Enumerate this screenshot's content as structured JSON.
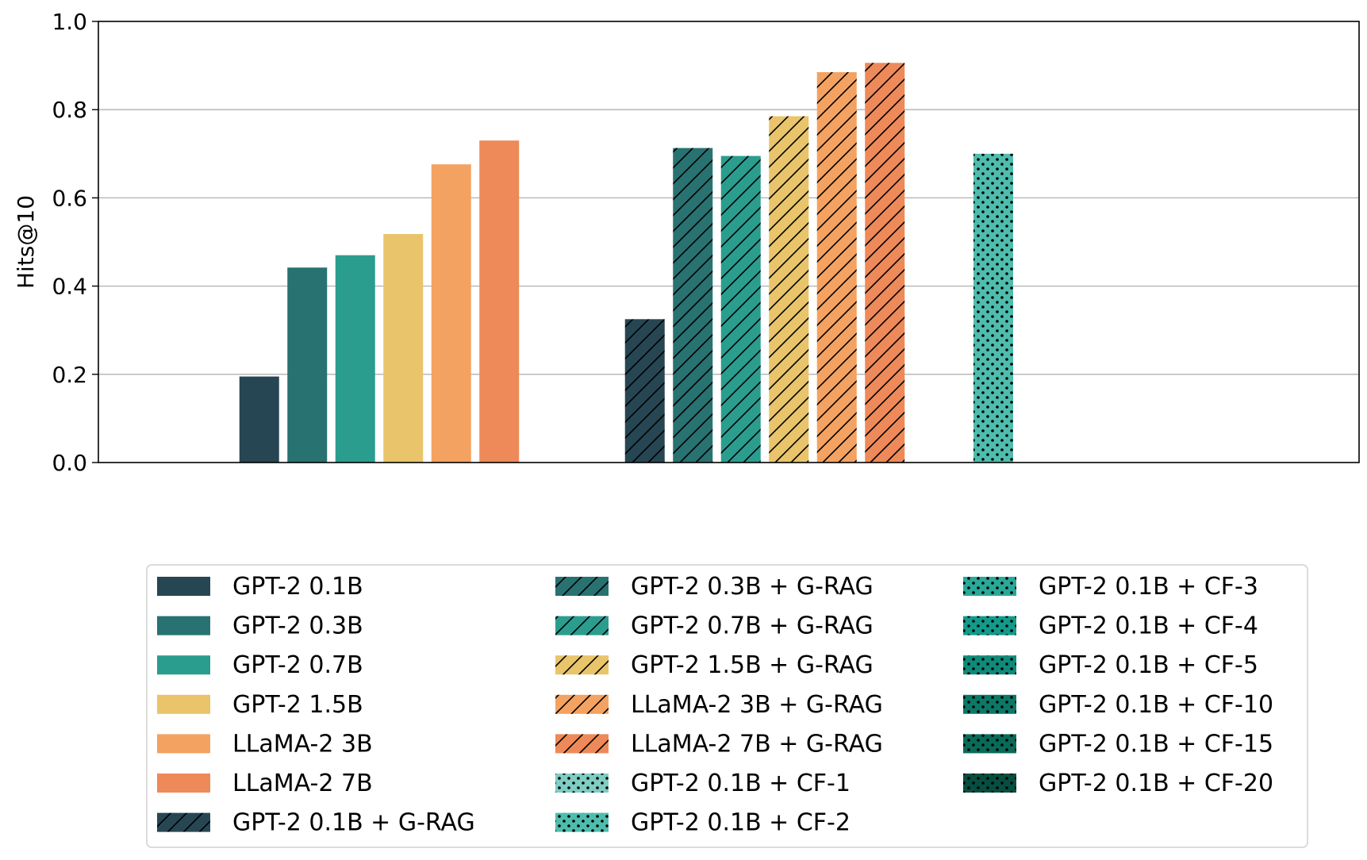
{
  "chart_data": {
    "type": "bar",
    "title": "",
    "xlabel": "",
    "ylabel": "Hits@10",
    "ylim": [
      0,
      1.0
    ],
    "yticks": [
      "0.0",
      "0.2",
      "0.4",
      "0.6",
      "0.8",
      "1.0"
    ],
    "grid": "horizontal",
    "legend_position": "bottom",
    "groups": [
      {
        "bars": [
          {
            "series": "GPT-2 0.1B",
            "value": 0.195
          },
          {
            "series": "GPT-2 0.3B",
            "value": 0.442
          },
          {
            "series": "GPT-2 0.7B",
            "value": 0.47
          },
          {
            "series": "GPT-2 1.5B",
            "value": 0.518
          },
          {
            "series": "LLaMA-2 3B",
            "value": 0.676
          },
          {
            "series": "LLaMA-2 7B",
            "value": 0.73
          }
        ]
      },
      {
        "bars": [
          {
            "series": "GPT-2 0.1B + G-RAG",
            "value": 0.325
          },
          {
            "series": "GPT-2 0.3B + G-RAG",
            "value": 0.713
          },
          {
            "series": "GPT-2 0.7B + G-RAG",
            "value": 0.695
          },
          {
            "series": "GPT-2 1.5B + G-RAG",
            "value": 0.785
          },
          {
            "series": "LLaMA-2 3B + G-RAG",
            "value": 0.885
          },
          {
            "series": "LLaMA-2 7B + G-RAG",
            "value": 0.906
          }
        ]
      },
      {
        "bars": [
          {
            "series": "GPT-2 0.1B + CF-2",
            "value": 0.7
          }
        ]
      }
    ],
    "series": [
      {
        "name": "GPT-2 0.1B",
        "color": "#264653",
        "pattern": "solid"
      },
      {
        "name": "GPT-2 0.3B",
        "color": "#287271",
        "pattern": "solid"
      },
      {
        "name": "GPT-2 0.7B",
        "color": "#2a9d8f",
        "pattern": "solid"
      },
      {
        "name": "GPT-2 1.5B",
        "color": "#e9c46a",
        "pattern": "solid"
      },
      {
        "name": "LLaMA-2 3B",
        "color": "#f4a261",
        "pattern": "solid"
      },
      {
        "name": "LLaMA-2 7B",
        "color": "#ee8959",
        "pattern": "solid"
      },
      {
        "name": "GPT-2 0.1B + G-RAG",
        "color": "#264653",
        "pattern": "hatch"
      },
      {
        "name": "GPT-2 0.3B + G-RAG",
        "color": "#287271",
        "pattern": "hatch"
      },
      {
        "name": "GPT-2 0.7B + G-RAG",
        "color": "#2a9d8f",
        "pattern": "hatch"
      },
      {
        "name": "GPT-2 1.5B + G-RAG",
        "color": "#e9c46a",
        "pattern": "hatch"
      },
      {
        "name": "LLaMA-2 3B + G-RAG",
        "color": "#f4a261",
        "pattern": "hatch"
      },
      {
        "name": "LLaMA-2 7B + G-RAG",
        "color": "#ee8959",
        "pattern": "hatch"
      },
      {
        "name": "GPT-2 0.1B + CF-1",
        "color": "#7fcdc3",
        "pattern": "dots"
      },
      {
        "name": "GPT-2 0.1B + CF-2",
        "color": "#4fbdad",
        "pattern": "dots"
      },
      {
        "name": "GPT-2 0.1B + CF-3",
        "color": "#2aa898",
        "pattern": "dots"
      },
      {
        "name": "GPT-2 0.1B + CF-4",
        "color": "#129b8a",
        "pattern": "dots"
      },
      {
        "name": "GPT-2 0.1B + CF-5",
        "color": "#0f8a7a",
        "pattern": "dots"
      },
      {
        "name": "GPT-2 0.1B + CF-10",
        "color": "#0c7866",
        "pattern": "dots"
      },
      {
        "name": "GPT-2 0.1B + CF-15",
        "color": "#0a6a58",
        "pattern": "dots"
      },
      {
        "name": "GPT-2 0.1B + CF-20",
        "color": "#064e40",
        "pattern": "dots"
      }
    ]
  }
}
